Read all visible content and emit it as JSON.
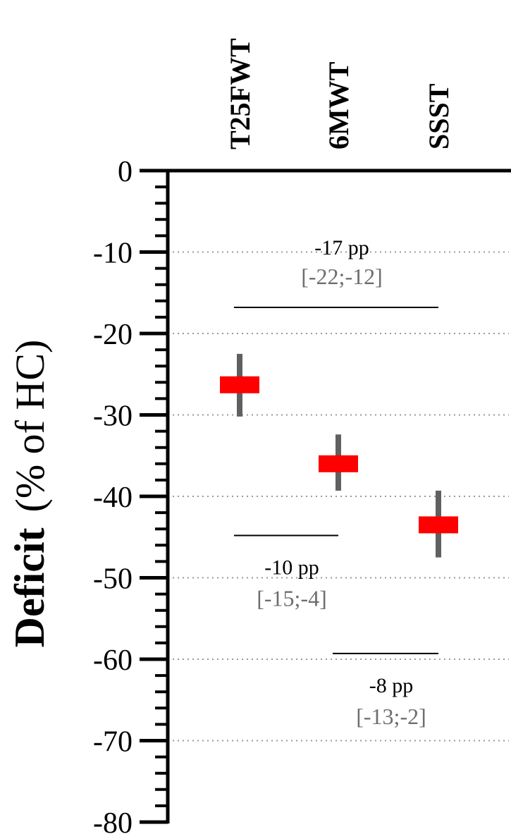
{
  "chart_data": {
    "type": "scatter",
    "title": "",
    "ylabel_bold": "Deficit",
    "ylabel_rest": "(% of HC)",
    "ylim": [
      -80,
      0
    ],
    "yticks": [
      0,
      -10,
      -20,
      -30,
      -40,
      -50,
      -60,
      -70,
      -80
    ],
    "grid": "dotted horizontal at every 10",
    "categories": [
      "T25FWT",
      "6MWT",
      "SSST"
    ],
    "points": [
      {
        "category": "T25FWT",
        "mean": -26.3,
        "ci_low": -30.2,
        "ci_high": -22.5
      },
      {
        "category": "6MWT",
        "mean": -36.0,
        "ci_low": -39.3,
        "ci_high": -32.4
      },
      {
        "category": "SSST",
        "mean": -43.5,
        "ci_low": -47.5,
        "ci_high": -39.3
      }
    ],
    "comparisons": [
      {
        "from": "T25FWT",
        "to": "SSST",
        "bar_y": -16.8,
        "label": "-17 pp",
        "ci": "[-22;-12]",
        "label_position": "above"
      },
      {
        "from": "T25FWT",
        "to": "6MWT",
        "bar_y": -44.8,
        "label": "-10 pp",
        "ci": "[-15;-4]",
        "label_position": "below"
      },
      {
        "from": "6MWT",
        "to": "SSST",
        "bar_y": -59.3,
        "label": "-8 pp",
        "ci": "[-13;-2]",
        "label_position": "below"
      }
    ],
    "colors": {
      "mean_marker": "#ff0000",
      "ci_bar": "#606060",
      "grid": "#9a9a9a",
      "ci_text": "#6e6e6e"
    }
  }
}
